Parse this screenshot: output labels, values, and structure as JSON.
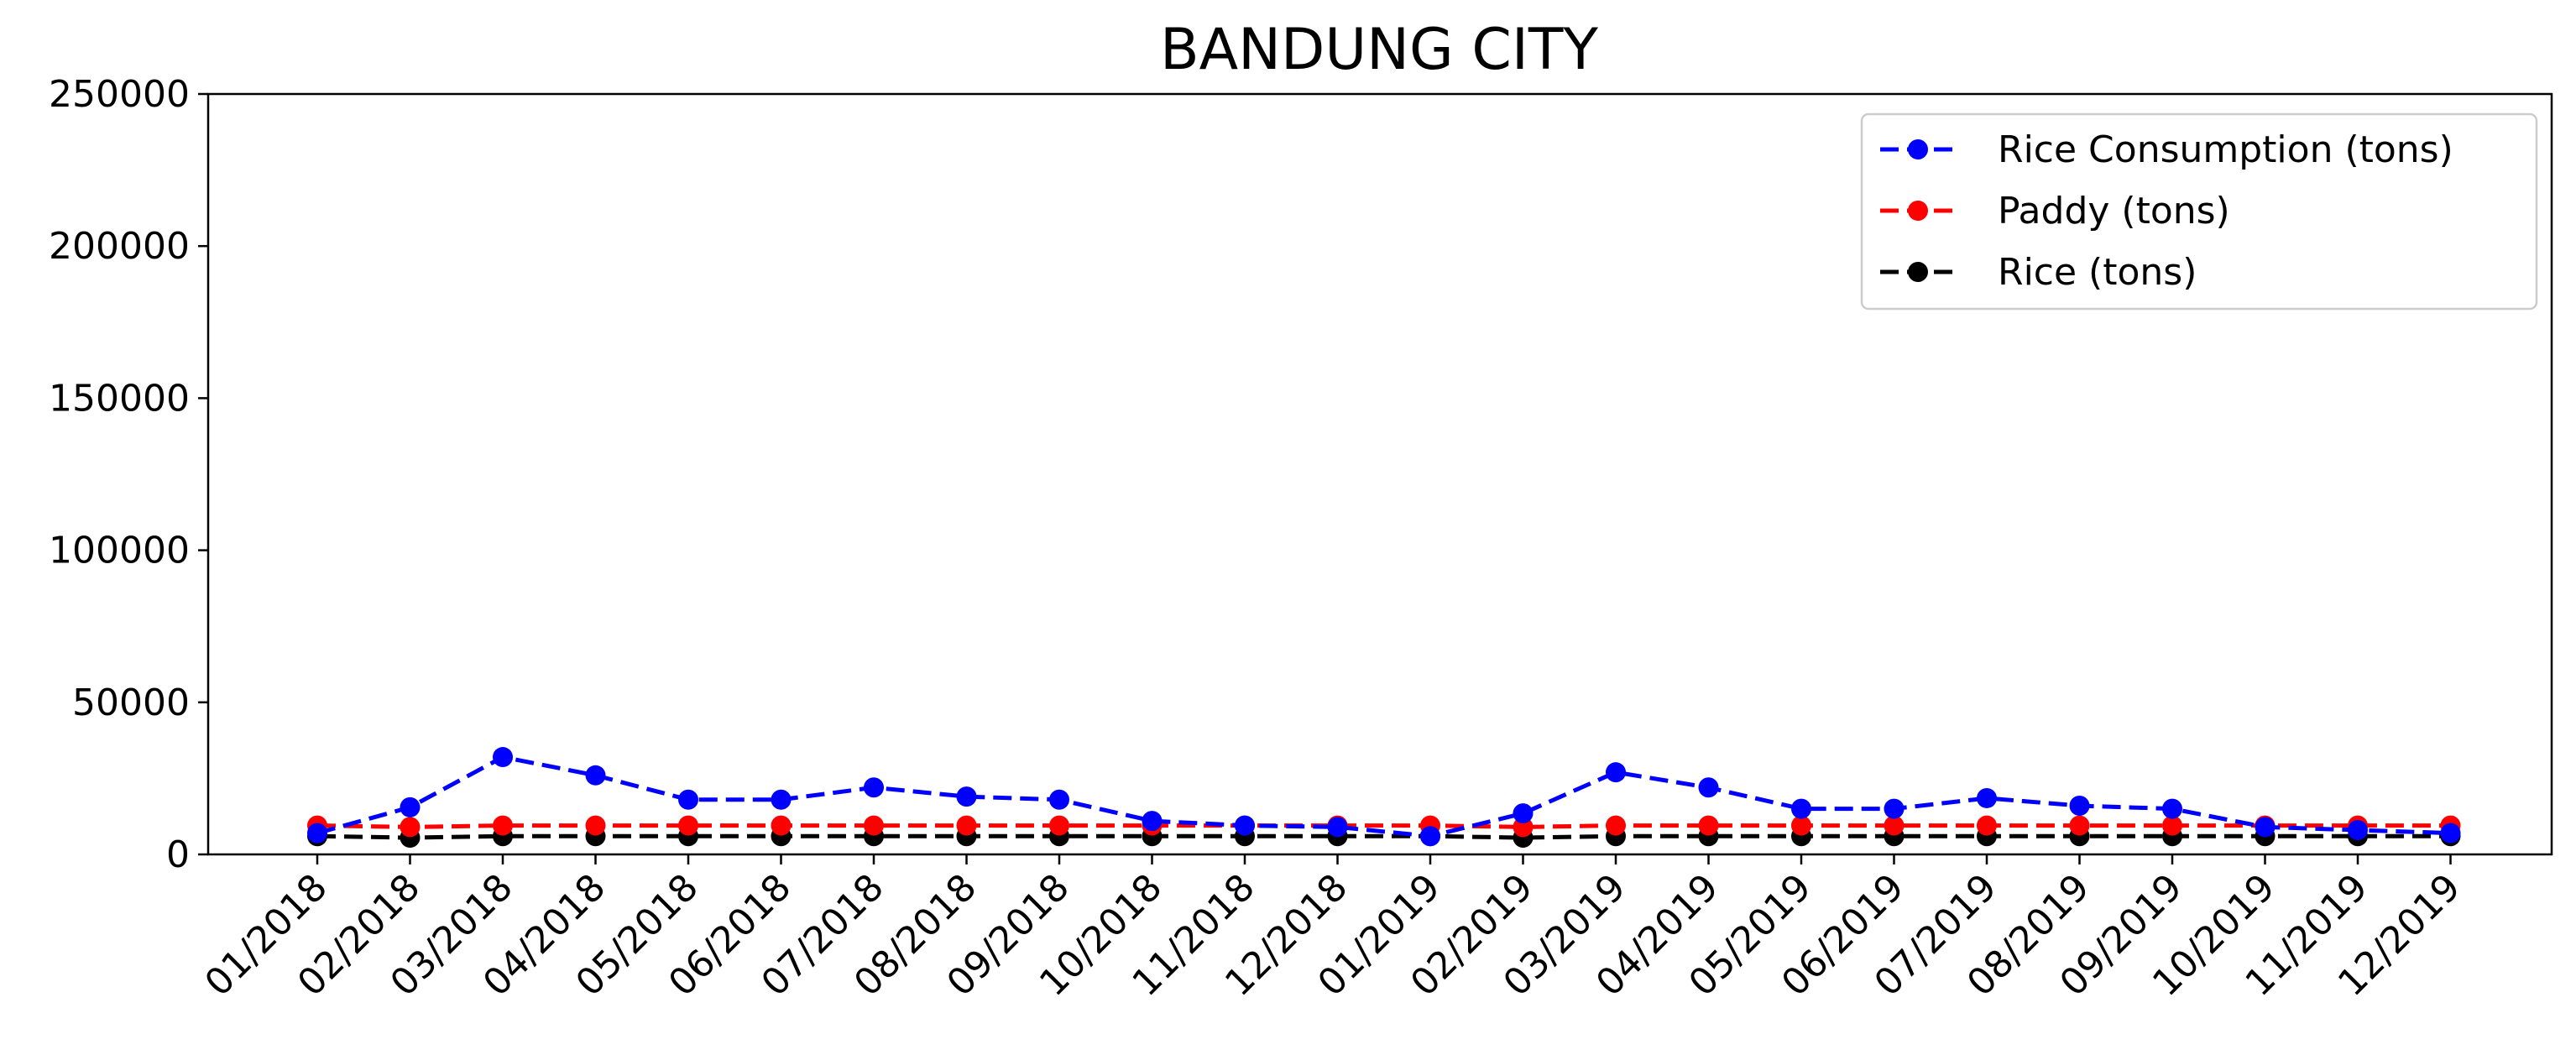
{
  "chart_data": {
    "type": "line",
    "title": "BANDUNG CITY",
    "xlabel": "",
    "ylabel": "",
    "ylim": [
      0,
      250000
    ],
    "yticks": [
      "0",
      "50000",
      "100000",
      "150000",
      "200000",
      "250000"
    ],
    "grid": false,
    "legend_position": "top-right",
    "categories": [
      "01/2018",
      "02/2018",
      "03/2018",
      "04/2018",
      "05/2018",
      "06/2018",
      "07/2018",
      "08/2018",
      "09/2018",
      "10/2018",
      "11/2018",
      "12/2018",
      "01/2019",
      "02/2019",
      "03/2019",
      "04/2019",
      "05/2019",
      "06/2019",
      "07/2019",
      "08/2019",
      "09/2019",
      "10/2019",
      "11/2019",
      "12/2019"
    ],
    "series": [
      {
        "name": "Rice Consumption (tons)",
        "color": "#0000ff",
        "values": [
          7000,
          15500,
          32000,
          26000,
          18000,
          18000,
          22000,
          19000,
          18000,
          11000,
          9500,
          9000,
          6000,
          13500,
          27000,
          22000,
          15000,
          15000,
          18500,
          16000,
          15000,
          9000,
          8000,
          7000
        ]
      },
      {
        "name": "Paddy (tons)",
        "color": "#ff0000",
        "values": [
          9500,
          9000,
          9500,
          9500,
          9500,
          9500,
          9500,
          9500,
          9500,
          9500,
          9500,
          9500,
          9500,
          9000,
          9500,
          9500,
          9500,
          9500,
          9500,
          9500,
          9500,
          9500,
          9500,
          9500
        ]
      },
      {
        "name": "Rice (tons)",
        "color": "#000000",
        "values": [
          6000,
          5500,
          6000,
          6000,
          6000,
          6000,
          6000,
          6000,
          6000,
          6000,
          6000,
          6000,
          6000,
          5500,
          6000,
          6000,
          6000,
          6000,
          6000,
          6000,
          6000,
          6000,
          6000,
          6000
        ]
      }
    ]
  }
}
